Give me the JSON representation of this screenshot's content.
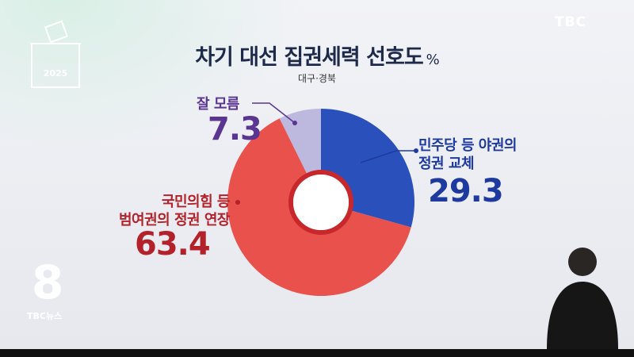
{
  "logo": "TBC",
  "badge": "2025",
  "channel": "8",
  "news_logo": "TBC뉴스",
  "chart_data": {
    "type": "pie",
    "title": "차기 대선 집권세력 선호도",
    "unit": "%",
    "subtitle": "대구·경북",
    "donut": true,
    "categories": [
      "민주당 등 야권의 정권 교체",
      "국민의힘 등 범여권의 정권 연장",
      "잘 모름"
    ],
    "values": [
      29.3,
      63.4,
      7.3
    ],
    "colors": [
      "#2a51bb",
      "#e8514c",
      "#bcb8de"
    ]
  }
}
